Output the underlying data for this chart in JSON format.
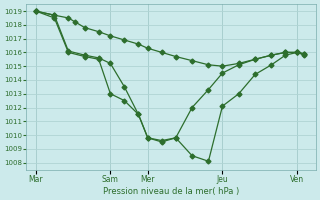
{
  "background_color": "#cceaeb",
  "grid_color": "#b0d4d4",
  "line_color": "#2d6e2d",
  "xlabel": "Pression niveau de la mer( hPa )",
  "ylim": [
    1007.5,
    1019.5
  ],
  "yticks": [
    1008,
    1009,
    1010,
    1011,
    1012,
    1013,
    1014,
    1015,
    1016,
    1017,
    1018,
    1019
  ],
  "xtick_labels": [
    "Mar",
    "Sam",
    "Mer",
    "Jeu",
    "Ven"
  ],
  "xtick_positions": [
    0,
    32,
    48,
    80,
    112
  ],
  "xlim": [
    -4,
    120
  ],
  "line1_x": [
    0,
    8,
    14,
    17,
    21,
    27,
    32,
    38,
    44,
    48,
    54,
    60,
    67,
    74,
    80,
    87,
    94,
    101,
    107,
    112,
    115
  ],
  "line1_y": [
    1019.0,
    1018.7,
    1018.5,
    1018.2,
    1017.8,
    1017.5,
    1017.2,
    1016.9,
    1016.6,
    1016.3,
    1016.0,
    1015.7,
    1015.4,
    1015.1,
    1015.0,
    1015.2,
    1015.5,
    1015.8,
    1016.0,
    1016.0,
    1015.9
  ],
  "line2_x": [
    0,
    8,
    14,
    21,
    27,
    32,
    38,
    44,
    48,
    54,
    60,
    67,
    74,
    80,
    87,
    94,
    101,
    107,
    112,
    115
  ],
  "line2_y": [
    1019.0,
    1018.5,
    1016.0,
    1015.7,
    1015.5,
    1013.0,
    1012.5,
    1011.5,
    1009.8,
    1009.5,
    1009.8,
    1008.5,
    1008.1,
    1012.1,
    1013.0,
    1014.4,
    1015.1,
    1015.8,
    1016.0,
    1015.9
  ],
  "line3_x": [
    0,
    8,
    14,
    21,
    27,
    32,
    38,
    44,
    48,
    54,
    60,
    67,
    74,
    80,
    87,
    94,
    101,
    107,
    112,
    115
  ],
  "line3_y": [
    1019.0,
    1018.7,
    1016.1,
    1015.8,
    1015.6,
    1015.2,
    1013.5,
    1011.5,
    1009.8,
    1009.6,
    1009.8,
    1012.0,
    1013.3,
    1014.5,
    1015.1,
    1015.5,
    1015.8,
    1016.0,
    1016.0,
    1015.8
  ]
}
